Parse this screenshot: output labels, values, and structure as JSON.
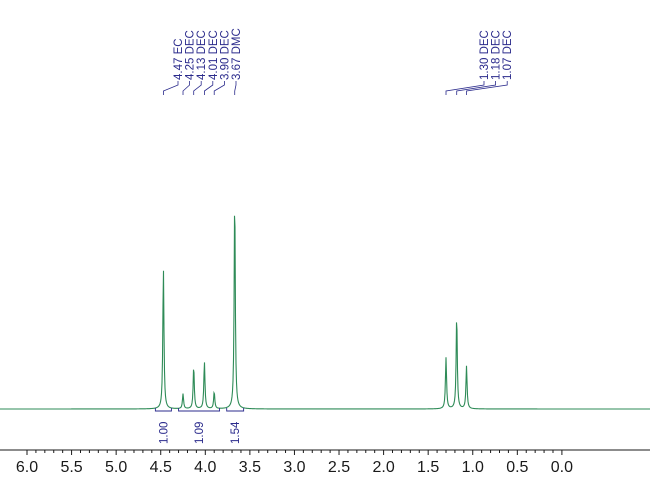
{
  "chart_data": {
    "type": "line",
    "title": "",
    "xlabel": "",
    "ylabel": "",
    "x_axis": {
      "reversed": true,
      "xlim": [
        6.3,
        -0.35
      ],
      "ticks": [
        6.0,
        5.5,
        5.0,
        4.5,
        4.0,
        3.5,
        3.0,
        2.5,
        2.0,
        1.5,
        1.0,
        0.5,
        0.0
      ],
      "tick_labels": [
        "6.0",
        "5.5",
        "5.0",
        "4.5",
        "4.0",
        "3.5",
        "3.0",
        "2.5",
        "2.0",
        "1.5",
        "1.0",
        "0.5",
        "0.0"
      ]
    },
    "grid": false,
    "series": [
      {
        "color": "#2e8b57",
        "peaks": [
          {
            "shift": 4.47,
            "height": 0.66
          },
          {
            "shift": 4.25,
            "height": 0.07
          },
          {
            "shift": 4.13,
            "height": 0.2
          },
          {
            "shift": 4.01,
            "height": 0.22
          },
          {
            "shift": 3.9,
            "height": 0.08
          },
          {
            "shift": 3.67,
            "height": 1.0
          },
          {
            "shift": 1.3,
            "height": 0.24
          },
          {
            "shift": 1.18,
            "height": 0.44
          },
          {
            "shift": 1.07,
            "height": 0.2
          }
        ]
      }
    ],
    "peak_labels": [
      {
        "shift": 4.47,
        "label": "4.47 EC"
      },
      {
        "shift": 4.25,
        "label": "4.25 DEC"
      },
      {
        "shift": 4.13,
        "label": "4.13 DEC"
      },
      {
        "shift": 4.01,
        "label": "4.01 DEC"
      },
      {
        "shift": 3.9,
        "label": "3.90 DEC"
      },
      {
        "shift": 3.67,
        "label": "3.67 DMC"
      },
      {
        "shift": 1.3,
        "label": "1.30 DEC"
      },
      {
        "shift": 1.18,
        "label": "1.18 DEC"
      },
      {
        "shift": 1.07,
        "label": "1.07 DEC"
      }
    ],
    "integrals": [
      {
        "from": 4.56,
        "to": 4.38,
        "value": "1.00"
      },
      {
        "from": 4.3,
        "to": 3.84,
        "value": "1.09"
      },
      {
        "from": 3.76,
        "to": 3.57,
        "value": "1.54"
      }
    ]
  },
  "colors": {
    "spectrum": "#2e8b57",
    "labels": "#2b2b8c",
    "axis": "#1a1a1a"
  }
}
